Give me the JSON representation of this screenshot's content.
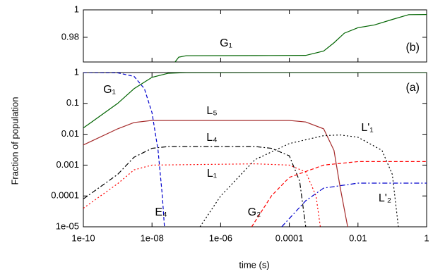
{
  "chart_data": [
    {
      "type": "line",
      "panel_label": "(b)",
      "xscale": "log",
      "xlim": [
        1e-10,
        1
      ],
      "ylim": [
        0.962,
        1
      ],
      "xticks": [
        1e-10,
        1e-08,
        1e-06,
        0.0001,
        0.01,
        1
      ],
      "yticks": [
        0.98,
        1
      ],
      "series": [
        {
          "name": "G₁",
          "color": "#006400",
          "dash": "solid",
          "x": [
            4.7e-08,
            6e-08,
            1e-07,
            1e-05,
            0.0003,
            0.001,
            0.002,
            0.004,
            0.01,
            0.03,
            0.1,
            0.3,
            1
          ],
          "values": [
            0.962,
            0.9655,
            0.9666,
            0.9667,
            0.9668,
            0.97,
            0.976,
            0.983,
            0.987,
            0.989,
            0.993,
            0.9965,
            0.9966
          ]
        }
      ]
    },
    {
      "type": "line",
      "panel_label": "(a)",
      "xlabel": "time (s)",
      "ylabel": "Fraction of population",
      "xscale": "log",
      "yscale": "log",
      "xlim": [
        1e-10,
        1
      ],
      "ylim": [
        1e-05,
        1
      ],
      "xticks": [
        1e-10,
        {
          "value": 1e-08,
          "label": "1e-08"
        },
        {
          "value": 1e-06,
          "label": "1e-06"
        },
        0.0001,
        0.01,
        1
      ],
      "yticks": [
        {
          "value": 1e-05,
          "label": "1e-05"
        },
        0.0001,
        0.001,
        0.01,
        0.1,
        1
      ],
      "series": [
        {
          "name": "G₁",
          "color": "#006400",
          "dash": "solid",
          "x": [
            1e-10,
            1e-09,
            3e-09,
            1e-08,
            3e-08,
            1e-07,
            1
          ],
          "values": [
            0.016,
            0.1,
            0.3,
            0.7,
            0.95,
            0.995,
            1
          ]
        },
        {
          "name": "E₄",
          "color": "#0000cc",
          "dash": "dashed",
          "x": [
            1e-10,
            1e-09,
            3e-09,
            6e-09,
            1e-08,
            1.5e-08,
            2e-08,
            2.3e-08
          ],
          "values": [
            1,
            0.98,
            0.75,
            0.3,
            0.05,
            0.003,
            0.0001,
            1e-05
          ]
        },
        {
          "name": "L₅",
          "color": "#a52a2a",
          "dash": "solid",
          "x": [
            1e-10,
            1e-09,
            3e-09,
            1e-08,
            0.0001,
            0.0003,
            0.001,
            0.002,
            0.003,
            0.005
          ],
          "values": [
            0.0045,
            0.015,
            0.024,
            0.028,
            0.028,
            0.025,
            0.015,
            0.003,
            0.0002,
            1e-05
          ]
        },
        {
          "name": "L₄",
          "color": "#000000",
          "dash": "dashdot",
          "x": [
            1e-10,
            1e-09,
            3e-09,
            1e-08,
            3e-08,
            1e-05,
            3e-05,
            0.0001,
            0.0002,
            0.0003
          ],
          "values": [
            8e-05,
            0.0005,
            0.0018,
            0.0035,
            0.004,
            0.004,
            0.0035,
            0.002,
            0.0003,
            1e-05
          ]
        },
        {
          "name": "L₁",
          "color": "#ff0000",
          "dash": "dotted",
          "x": [
            1e-10,
            1e-09,
            3e-09,
            1e-08,
            1e-05,
            0.0001,
            0.0003,
            0.0006,
            0.0008
          ],
          "values": [
            4e-05,
            0.00025,
            0.0007,
            0.001,
            0.0011,
            0.001,
            0.0006,
            0.0001,
            1e-05
          ]
        },
        {
          "name": "L'₁",
          "color": "#000000",
          "dash": "dotted",
          "x": [
            2.5e-07,
            1e-06,
            1e-05,
            0.0001,
            0.001,
            0.003,
            0.01,
            0.05,
            0.1,
            0.15
          ],
          "values": [
            1e-05,
            0.0001,
            0.0015,
            0.005,
            0.009,
            0.0095,
            0.008,
            0.003,
            0.0005,
            1e-05
          ]
        },
        {
          "name": "G₂",
          "color": "#ff0000",
          "dash": "dashed",
          "x": [
            8e-06,
            3e-05,
            0.0001,
            0.001,
            0.01,
            1
          ],
          "values": [
            1e-05,
            0.0001,
            0.0004,
            0.001,
            0.0013,
            0.0013
          ]
        },
        {
          "name": "L'₂",
          "color": "#0000cc",
          "dash": "dashdot",
          "x": [
            6e-05,
            0.0003,
            0.001,
            0.01,
            1
          ],
          "values": [
            1e-05,
            7e-05,
            0.00018,
            0.00026,
            0.00026
          ]
        }
      ]
    }
  ]
}
